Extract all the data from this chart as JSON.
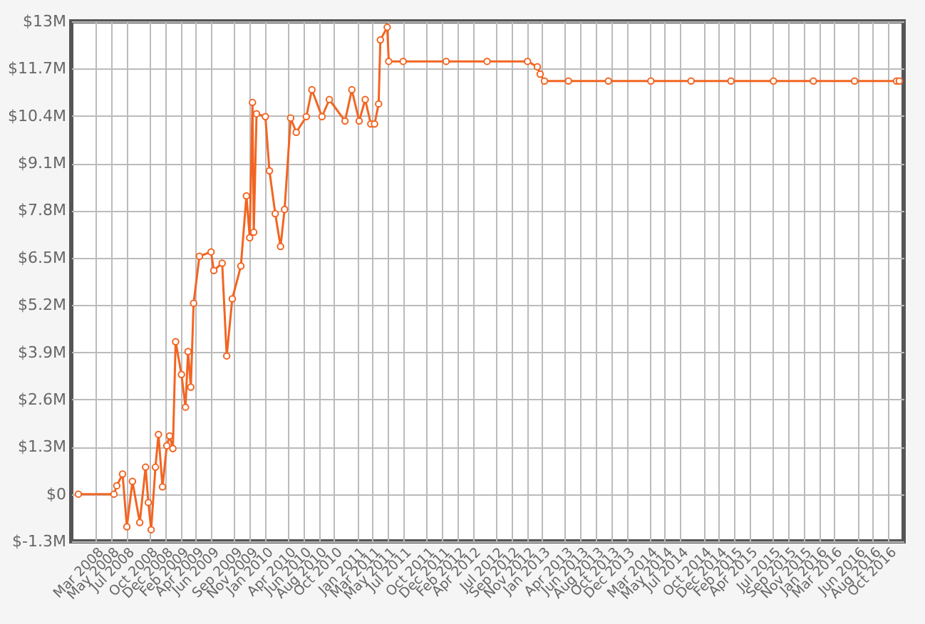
{
  "chart_data": {
    "type": "line",
    "marker": "circle",
    "line_style": "solid",
    "grid": true,
    "xlim": [
      "2007-11-26",
      "2016-12-01"
    ],
    "xticks": [
      {
        "value": "2008-03-01",
        "label": "Mar 2008"
      },
      {
        "value": "2008-05-01",
        "label": "May 2008"
      },
      {
        "value": "2008-07-01",
        "label": "Jul 2008"
      },
      {
        "value": "2008-10-01",
        "label": "Oct 2008"
      },
      {
        "value": "2008-12-01",
        "label": "Dec 2008"
      },
      {
        "value": "2009-02-01",
        "label": "Feb 2009"
      },
      {
        "value": "2009-04-01",
        "label": "Apr 2009"
      },
      {
        "value": "2009-06-01",
        "label": "Jun 2009"
      },
      {
        "value": "2009-09-01",
        "label": "Sep 2009"
      },
      {
        "value": "2009-11-01",
        "label": "Nov 2009"
      },
      {
        "value": "2010-01-01",
        "label": "Jan 2010"
      },
      {
        "value": "2010-04-01",
        "label": "Apr 2010"
      },
      {
        "value": "2010-06-01",
        "label": "Jun 2010"
      },
      {
        "value": "2010-08-01",
        "label": "Aug 2010"
      },
      {
        "value": "2010-10-01",
        "label": "Oct 2010"
      },
      {
        "value": "2011-01-01",
        "label": "Jan 2011"
      },
      {
        "value": "2011-03-01",
        "label": "Mar 2011"
      },
      {
        "value": "2011-05-01",
        "label": "May 2011"
      },
      {
        "value": "2011-07-01",
        "label": "Jul 2011"
      },
      {
        "value": "2011-10-01",
        "label": "Oct 2011"
      },
      {
        "value": "2011-12-01",
        "label": "Dec 2011"
      },
      {
        "value": "2012-02-01",
        "label": "Feb 2012"
      },
      {
        "value": "2012-04-01",
        "label": "Apr 2012"
      },
      {
        "value": "2012-07-01",
        "label": "Jul 2012"
      },
      {
        "value": "2012-09-01",
        "label": "Sep 2012"
      },
      {
        "value": "2012-11-01",
        "label": "Nov 2012"
      },
      {
        "value": "2013-01-01",
        "label": "Jan 2013"
      },
      {
        "value": "2013-04-01",
        "label": "Apr 2013"
      },
      {
        "value": "2013-06-01",
        "label": "Jun 2013"
      },
      {
        "value": "2013-08-01",
        "label": "Aug 2013"
      },
      {
        "value": "2013-10-01",
        "label": "Oct 2013"
      },
      {
        "value": "2013-12-01",
        "label": "Dec 2013"
      },
      {
        "value": "2014-03-01",
        "label": "Mar 2014"
      },
      {
        "value": "2014-05-01",
        "label": "May 2014"
      },
      {
        "value": "2014-07-01",
        "label": "Jul 2014"
      },
      {
        "value": "2014-10-01",
        "label": "Oct 2014"
      },
      {
        "value": "2014-12-01",
        "label": "Dec 2014"
      },
      {
        "value": "2015-02-01",
        "label": "Feb 2015"
      },
      {
        "value": "2015-04-01",
        "label": "Apr 2015"
      },
      {
        "value": "2015-07-01",
        "label": "Jul 2015"
      },
      {
        "value": "2015-09-01",
        "label": "Sep 2015"
      },
      {
        "value": "2015-11-01",
        "label": "Nov 2015"
      },
      {
        "value": "2016-01-01",
        "label": "Jan 2016"
      },
      {
        "value": "2016-03-01",
        "label": "Mar 2016"
      },
      {
        "value": "2016-06-01",
        "label": "Jun 2016"
      },
      {
        "value": "2016-08-01",
        "label": "Aug 2016"
      },
      {
        "value": "2016-10-01",
        "label": "Oct 2016"
      }
    ],
    "ylim": [
      -1.3,
      13
    ],
    "yticks": [
      {
        "value": -1.3,
        "label": "$-1.3M"
      },
      {
        "value": 0,
        "label": "$0"
      },
      {
        "value": 1.3,
        "label": "$1.3M"
      },
      {
        "value": 2.6,
        "label": "$2.6M"
      },
      {
        "value": 3.9,
        "label": "$3.9M"
      },
      {
        "value": 5.2,
        "label": "$5.2M"
      },
      {
        "value": 6.5,
        "label": "$6.5M"
      },
      {
        "value": 7.8,
        "label": "$7.8M"
      },
      {
        "value": 9.1,
        "label": "$9.1M"
      },
      {
        "value": 10.4,
        "label": "$10.4M"
      },
      {
        "value": 11.7,
        "label": "$11.7M"
      },
      {
        "value": 13,
        "label": "$13M"
      }
    ],
    "series": [
      {
        "color": "#f26522",
        "x": [
          "2007-12-24",
          "2008-05-13",
          "2008-05-24",
          "2008-06-16",
          "2008-07-03",
          "2008-07-25",
          "2008-08-23",
          "2008-09-15",
          "2008-09-26",
          "2008-10-07",
          "2008-10-24",
          "2008-11-05",
          "2008-11-21",
          "2008-12-08",
          "2008-12-19",
          "2009-01-01",
          "2009-01-12",
          "2009-02-04",
          "2009-02-20",
          "2009-03-02",
          "2009-03-13",
          "2009-03-24",
          "2009-04-16",
          "2009-06-01",
          "2009-06-12",
          "2009-07-15",
          "2009-08-02",
          "2009-08-24",
          "2009-09-27",
          "2009-10-19",
          "2009-11-01",
          "2009-11-12",
          "2009-11-17",
          "2009-11-28",
          "2010-01-02",
          "2010-01-18",
          "2010-02-10",
          "2010-03-03",
          "2010-03-19",
          "2010-04-12",
          "2010-05-04",
          "2010-06-13",
          "2010-07-05",
          "2010-08-14",
          "2010-09-12",
          "2010-11-13",
          "2010-12-10",
          "2011-01-08",
          "2011-02-01",
          "2011-02-23",
          "2011-03-10",
          "2011-03-26",
          "2011-04-02",
          "2011-04-29",
          "2011-05-05",
          "2011-07-01",
          "2011-12-18",
          "2012-05-28",
          "2012-11-04",
          "2012-12-13",
          "2012-12-24",
          "2013-01-10",
          "2013-04-15",
          "2013-09-20",
          "2014-03-07",
          "2014-08-13",
          "2015-01-18",
          "2015-07-05",
          "2015-12-10",
          "2016-05-21",
          "2016-11-03",
          "2016-11-14"
        ],
        "values": [
          0,
          0,
          0.23,
          0.55,
          -0.9,
          0.35,
          -0.78,
          0.74,
          -0.23,
          -0.98,
          0.74,
          1.64,
          0.2,
          1.33,
          1.6,
          1.25,
          4.19,
          3.29,
          2.39,
          3.92,
          2.94,
          5.25,
          6.54,
          6.66,
          6.15,
          6.35,
          3.8,
          5.37,
          6.27,
          8.2,
          7.05,
          10.77,
          7.2,
          10.46,
          10.38,
          8.89,
          7.71,
          6.81,
          7.83,
          10.34,
          9.95,
          10.38,
          11.12,
          10.38,
          10.85,
          10.26,
          11.12,
          10.26,
          10.85,
          10.18,
          10.18,
          10.73,
          12.49,
          12.84,
          11.9,
          11.9,
          11.9,
          11.9,
          11.9,
          11.75,
          11.55,
          11.36,
          11.36,
          11.36,
          11.36,
          11.36,
          11.36,
          11.36,
          11.36,
          11.36,
          11.36,
          11.36
        ]
      }
    ]
  }
}
